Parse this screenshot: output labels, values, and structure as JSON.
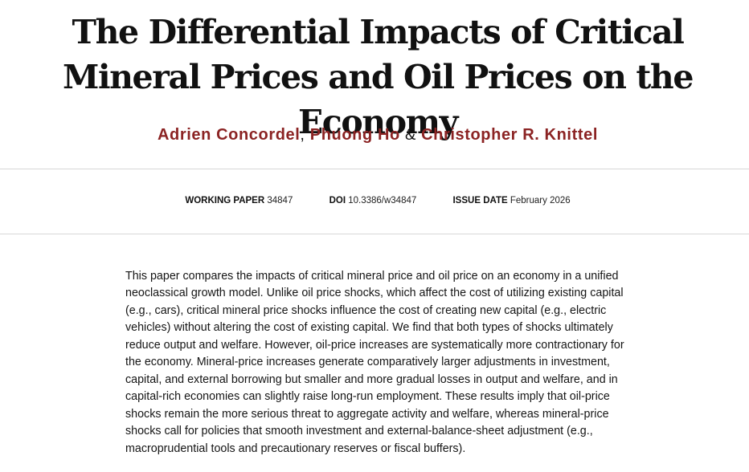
{
  "paper": {
    "title": "The Differential Impacts of Critical Mineral Prices and Oil Prices on the Economy",
    "authors": [
      {
        "name": "Adrien Concordel"
      },
      {
        "name": "Phuong Ho"
      },
      {
        "name": "Christopher R. Knittel"
      }
    ],
    "author_separators": [
      ",",
      "&"
    ]
  },
  "meta": {
    "working_paper": {
      "label": "WORKING PAPER",
      "value": "34847"
    },
    "doi": {
      "label": "DOI",
      "value": "10.3386/w34847"
    },
    "issue_date": {
      "label": "ISSUE DATE",
      "value": "February 2026"
    }
  },
  "abstract": {
    "text": "This paper compares the impacts of critical mineral price and oil price on an economy in a unified neoclassical growth model. Unlike oil price shocks, which affect the cost of utilizing existing capital (e.g., cars), critical mineral price shocks influence the cost of creating new capital (e.g., electric vehicles) without altering the cost of existing capital. We find that both types of shocks ultimately reduce output and welfare. However, oil-price increases are systematically more contractionary for the economy. Mineral-price increases generate comparatively larger adjustments in investment, capital, and external borrowing but smaller and more gradual losses in output and welfare, and in capital-rich economies can slightly raise long-run employment. These results imply that oil-price shocks remain the more serious threat to aggregate activity and welfare, whereas mineral-price shocks call for policies that smooth investment and external-balance-sheet adjustment (e.g., macroprudential tools and precautionary reserves or fiscal buffers)."
  },
  "colors": {
    "author_link": "#8b2323",
    "text": "#111111",
    "divider": "#d7d7d7"
  }
}
